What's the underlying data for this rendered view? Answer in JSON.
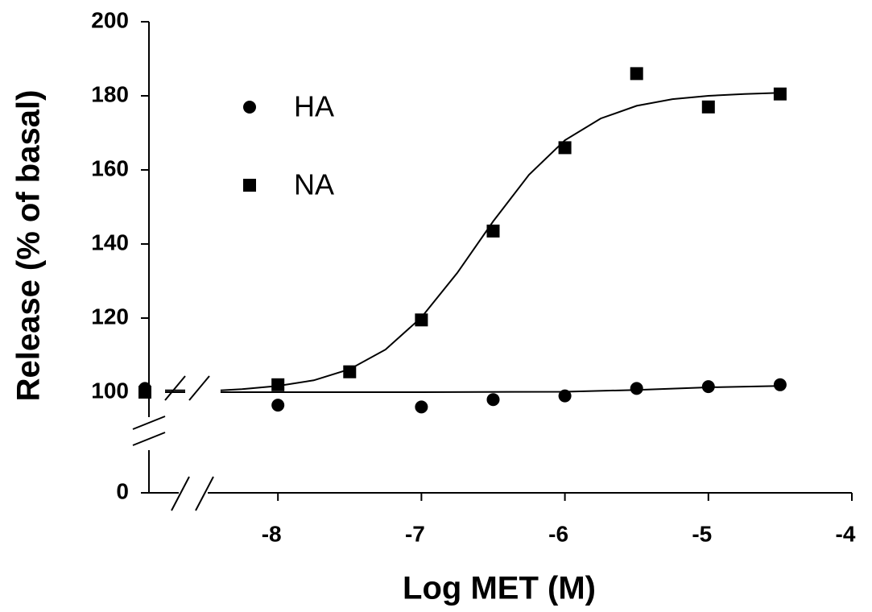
{
  "chart_data": {
    "type": "scatter",
    "x_label": "Log MET (M)",
    "y_label": "Release (% of basal)",
    "xlim": [
      -8.45,
      -4
    ],
    "xticks": [
      -8,
      -7,
      -6,
      -5,
      -4
    ],
    "ylim": [
      0,
      200
    ],
    "yticks": [
      0,
      100,
      120,
      140,
      160,
      180,
      200
    ],
    "series": [
      {
        "name": "HA",
        "marker": "circle",
        "color": "#000000",
        "x": [
          null,
          -8,
          -7,
          -6.5,
          -6,
          -5.5,
          -5,
          -4.5
        ],
        "values": [
          101,
          96.5,
          96,
          98,
          99,
          101,
          101.5,
          102
        ]
      },
      {
        "name": "NA",
        "marker": "square",
        "color": "#000000",
        "x": [
          null,
          -8,
          -7.5,
          -7,
          -6.5,
          -6,
          -5.5,
          -5,
          -4.5
        ],
        "values": [
          100,
          102,
          105.5,
          119.5,
          143.5,
          166,
          186,
          177,
          180.5
        ]
      }
    ],
    "fits": [
      {
        "x": [
          -8.4,
          -7,
          -6,
          -5.5,
          -5,
          -4.5
        ],
        "values": [
          100,
          100,
          100.1,
          100.6,
          101.3,
          101.7
        ]
      },
      {
        "x": [
          -8.4,
          -8.25,
          -8,
          -7.75,
          -7.5,
          -7.25,
          -7,
          -6.75,
          -6.5,
          -6.25,
          -6,
          -5.75,
          -5.5,
          -5.25,
          -5,
          -4.75,
          -4.5
        ],
        "values": [
          100.5,
          100.8,
          101.7,
          103.2,
          106.2,
          111.5,
          120.2,
          132.2,
          146.1,
          158.7,
          168,
          173.9,
          177.3,
          179.1,
          180,
          180.5,
          180.8
        ]
      }
    ]
  }
}
